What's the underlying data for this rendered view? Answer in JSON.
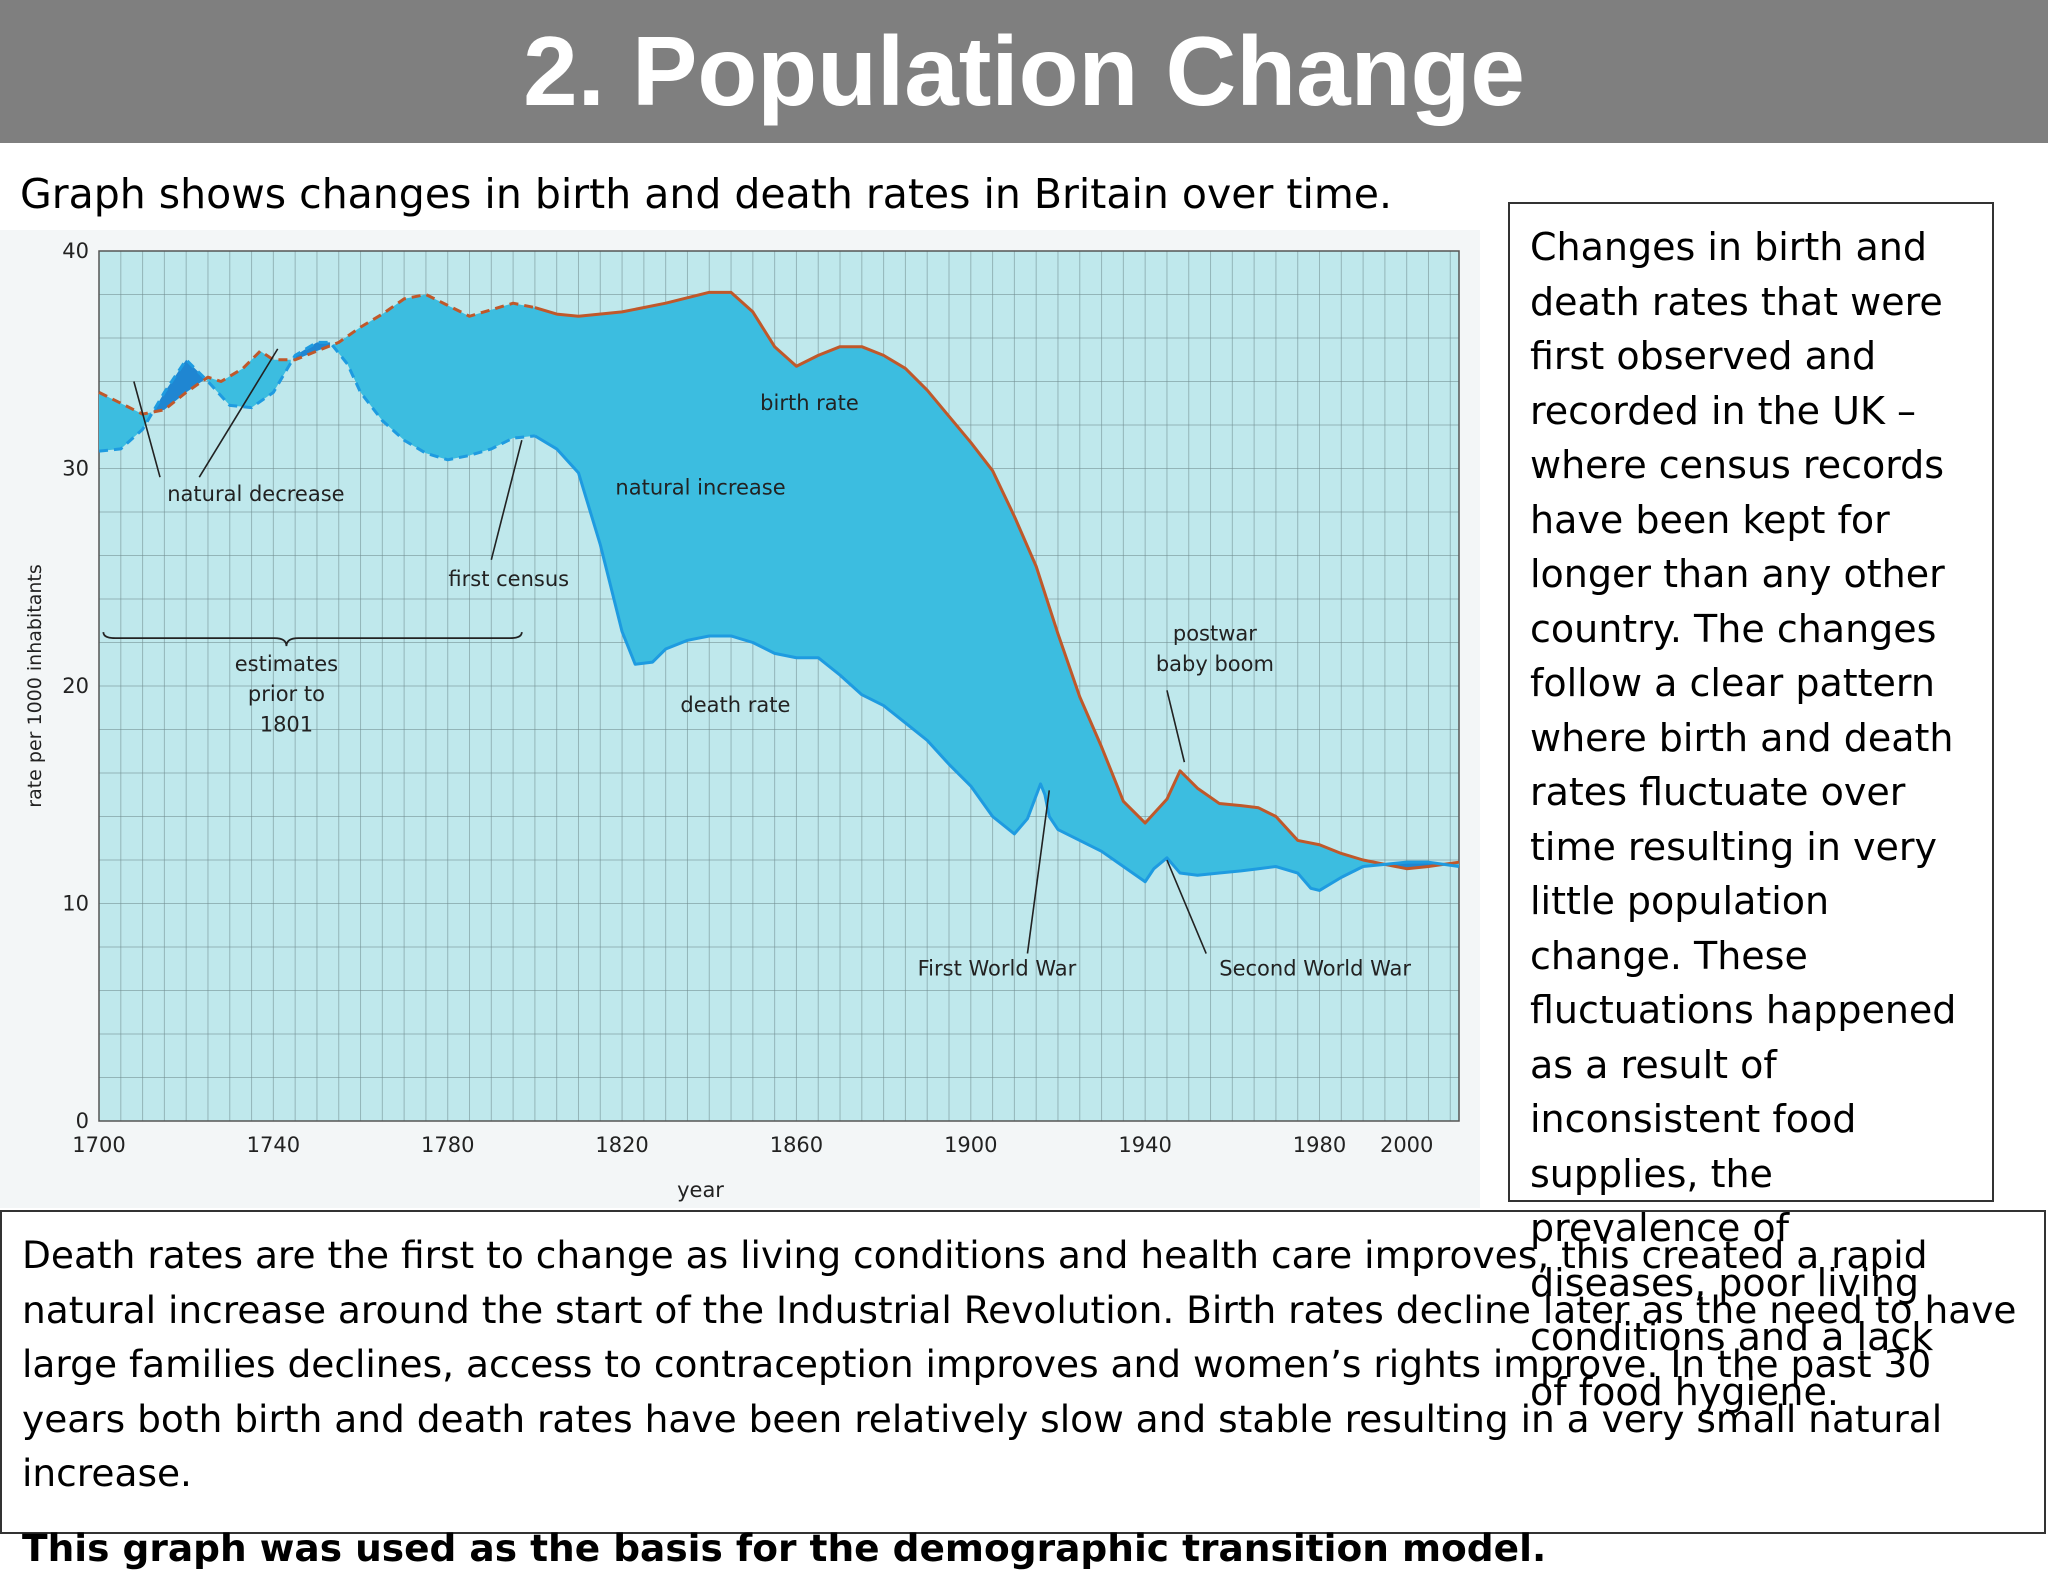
{
  "slide": {
    "title": "2. Population Change",
    "caption": "Graph shows changes in birth and death rates in Britain over time.",
    "side_text": "Changes in birth and death rates that were first observed and recorded in the UK – where census records have been kept for longer than any other country. The changes follow a clear pattern where birth and death rates fluctuate over time resulting in very little population change. These fluctuations happened as a result of inconsistent food supplies, the prevalence of diseases, poor living conditions and a lack of food hygiene.",
    "bottom_text": "Death rates are the first to change as living conditions and health care improves, this created a rapid natural increase around the start of the Industrial Revolution. Birth rates decline later as the need to have large families declines, access to contraception improves and women’s rights improve. In the past 30 years both birth and death rates have been relatively slow and stable resulting in a very small natural increase.",
    "bottom_bold": "This graph was used as the basis for the demographic transition model."
  },
  "colors": {
    "title_bar": "#7f7f7f",
    "plot_bg": "#bfe8ec",
    "grid": "#6f8a8e",
    "birth_line": "#c0582a",
    "death_line": "#1e9be0",
    "increase_fill": "#3cbde0",
    "decrease_fill": "#1f86d2"
  },
  "chart_data": {
    "type": "line",
    "xlabel": "year",
    "ylabel": "rate per 1000 inhabitants",
    "xlim": [
      1700,
      2012
    ],
    "ylim": [
      0,
      40
    ],
    "x_ticks": [
      "1700",
      "1740",
      "1780",
      "1820",
      "1860",
      "1900",
      "1940",
      "1980",
      "2000"
    ],
    "y_ticks": [
      "0",
      "10",
      "20",
      "30",
      "40"
    ],
    "grid": true,
    "series": [
      {
        "name": "birth rate",
        "points": [
          [
            1700,
            33.5
          ],
          [
            1705,
            33.0
          ],
          [
            1710,
            32.5
          ],
          [
            1715,
            32.7
          ],
          [
            1720,
            33.5
          ],
          [
            1725,
            34.2
          ],
          [
            1728,
            34.0
          ],
          [
            1733,
            34.6
          ],
          [
            1737,
            35.4
          ],
          [
            1740,
            35.0
          ],
          [
            1745,
            35.0
          ],
          [
            1750,
            35.4
          ],
          [
            1755,
            35.8
          ],
          [
            1760,
            36.5
          ],
          [
            1765,
            37.1
          ],
          [
            1770,
            37.8
          ],
          [
            1775,
            38.0
          ],
          [
            1780,
            37.5
          ],
          [
            1785,
            37.0
          ],
          [
            1790,
            37.3
          ],
          [
            1795,
            37.6
          ],
          [
            1800,
            37.4
          ],
          [
            1805,
            37.1
          ],
          [
            1810,
            37.0
          ],
          [
            1820,
            37.2
          ],
          [
            1830,
            37.6
          ],
          [
            1840,
            38.1
          ],
          [
            1845,
            38.1
          ],
          [
            1850,
            37.2
          ],
          [
            1855,
            35.6
          ],
          [
            1860,
            34.7
          ],
          [
            1865,
            35.2
          ],
          [
            1870,
            35.6
          ],
          [
            1875,
            35.6
          ],
          [
            1880,
            35.2
          ],
          [
            1885,
            34.6
          ],
          [
            1890,
            33.6
          ],
          [
            1895,
            32.4
          ],
          [
            1900,
            31.2
          ],
          [
            1905,
            29.9
          ],
          [
            1910,
            27.8
          ],
          [
            1915,
            25.5
          ],
          [
            1920,
            22.4
          ],
          [
            1925,
            19.5
          ],
          [
            1930,
            17.2
          ],
          [
            1935,
            14.7
          ],
          [
            1940,
            13.7
          ],
          [
            1945,
            14.8
          ],
          [
            1948,
            16.1
          ],
          [
            1952,
            15.3
          ],
          [
            1957,
            14.6
          ],
          [
            1962,
            14.5
          ],
          [
            1966,
            14.4
          ],
          [
            1970,
            14.0
          ],
          [
            1975,
            12.9
          ],
          [
            1980,
            12.7
          ],
          [
            1985,
            12.3
          ],
          [
            1990,
            12.0
          ],
          [
            1995,
            11.8
          ],
          [
            2000,
            11.6
          ],
          [
            2005,
            11.7
          ],
          [
            2012,
            11.9
          ]
        ]
      },
      {
        "name": "death rate",
        "points": [
          [
            1700,
            30.8
          ],
          [
            1705,
            30.9
          ],
          [
            1710,
            31.8
          ],
          [
            1715,
            33.5
          ],
          [
            1720,
            35.0
          ],
          [
            1725,
            34.0
          ],
          [
            1730,
            32.9
          ],
          [
            1735,
            32.8
          ],
          [
            1740,
            33.5
          ],
          [
            1745,
            35.2
          ],
          [
            1750,
            35.8
          ],
          [
            1753,
            35.8
          ],
          [
            1757,
            34.8
          ],
          [
            1760,
            33.5
          ],
          [
            1765,
            32.2
          ],
          [
            1770,
            31.3
          ],
          [
            1775,
            30.7
          ],
          [
            1780,
            30.4
          ],
          [
            1785,
            30.6
          ],
          [
            1790,
            30.9
          ],
          [
            1795,
            31.4
          ],
          [
            1800,
            31.5
          ],
          [
            1805,
            30.9
          ],
          [
            1810,
            29.8
          ],
          [
            1815,
            26.5
          ],
          [
            1820,
            22.5
          ],
          [
            1823,
            21.0
          ],
          [
            1827,
            21.1
          ],
          [
            1830,
            21.7
          ],
          [
            1835,
            22.1
          ],
          [
            1840,
            22.3
          ],
          [
            1845,
            22.3
          ],
          [
            1850,
            22.0
          ],
          [
            1855,
            21.5
          ],
          [
            1860,
            21.3
          ],
          [
            1865,
            21.3
          ],
          [
            1870,
            20.5
          ],
          [
            1875,
            19.6
          ],
          [
            1880,
            19.1
          ],
          [
            1885,
            18.3
          ],
          [
            1890,
            17.5
          ],
          [
            1895,
            16.4
          ],
          [
            1900,
            15.4
          ],
          [
            1905,
            14.0
          ],
          [
            1910,
            13.2
          ],
          [
            1913,
            13.9
          ],
          [
            1916,
            15.5
          ],
          [
            1917,
            15.0
          ],
          [
            1918,
            14.0
          ],
          [
            1920,
            13.4
          ],
          [
            1925,
            12.9
          ],
          [
            1930,
            12.4
          ],
          [
            1935,
            11.7
          ],
          [
            1940,
            11.0
          ],
          [
            1942,
            11.6
          ],
          [
            1945,
            12.1
          ],
          [
            1948,
            11.4
          ],
          [
            1952,
            11.3
          ],
          [
            1957,
            11.4
          ],
          [
            1962,
            11.5
          ],
          [
            1966,
            11.6
          ],
          [
            1970,
            11.7
          ],
          [
            1975,
            11.4
          ],
          [
            1978,
            10.7
          ],
          [
            1980,
            10.6
          ],
          [
            1985,
            11.2
          ],
          [
            1990,
            11.7
          ],
          [
            1995,
            11.8
          ],
          [
            2000,
            11.9
          ],
          [
            2005,
            11.9
          ],
          [
            2012,
            11.7
          ]
        ]
      }
    ],
    "annotations": {
      "birth_rate": "birth rate",
      "death_rate": "death rate",
      "natural_increase": "natural increase",
      "natural_decrease": "natural decrease",
      "first_census": "first  census",
      "estimates_1": "estimates",
      "estimates_2": "prior to",
      "estimates_3": "1801",
      "postwar_1": "postwar",
      "postwar_2": "baby boom",
      "ww1": "First World War",
      "ww2": "Second World War"
    }
  }
}
